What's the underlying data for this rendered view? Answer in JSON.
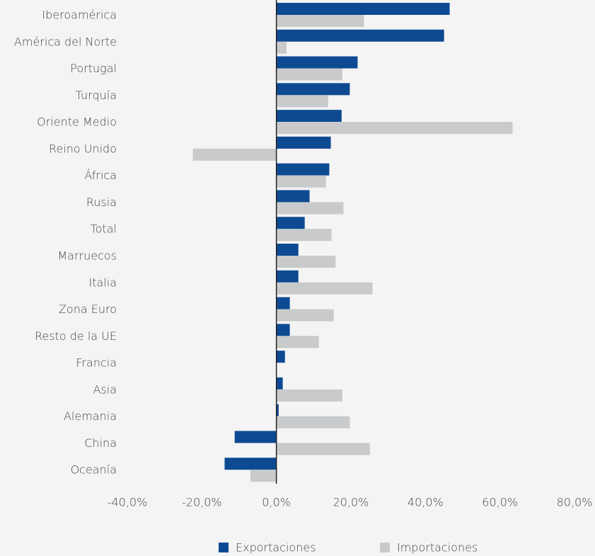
{
  "chart_data": {
    "type": "barh",
    "categories": [
      "Iberoamérica",
      "América del Norte",
      "Portugal",
      "Turquía",
      "Oriente Medio",
      "Reino Unido",
      "África",
      "Rusia",
      "Total",
      "Marruecos",
      "Italia",
      "Zona Euro",
      "Resto de la UE",
      "Francia",
      "Asia",
      "Alemania",
      "China",
      "Oceanía"
    ],
    "series": [
      {
        "name": "Exportaciones",
        "color": "#0d4a92",
        "values": [
          46.5,
          45.0,
          21.8,
          19.7,
          17.5,
          14.6,
          14.2,
          8.9,
          7.6,
          5.9,
          5.9,
          3.6,
          3.6,
          2.3,
          1.7,
          0.6,
          -11.2,
          -13.9
        ]
      },
      {
        "name": "Importaciones",
        "color": "#c8cacc",
        "values": [
          23.5,
          2.7,
          17.7,
          13.9,
          63.4,
          -22.4,
          13.3,
          18.0,
          14.8,
          15.9,
          25.8,
          15.4,
          11.4,
          0,
          17.7,
          19.7,
          25.1,
          -7.0
        ]
      }
    ],
    "xlim": [
      -40,
      80
    ],
    "xticks": [
      {
        "value": -40,
        "label": "-40,0%"
      },
      {
        "value": -20,
        "label": "-20,0%"
      },
      {
        "value": 0,
        "label": "0,0%"
      },
      {
        "value": 20,
        "label": "20,0%"
      },
      {
        "value": 40,
        "label": "40,0%"
      },
      {
        "value": 60,
        "label": "60,0%"
      },
      {
        "value": 80,
        "label": "80,0%"
      }
    ],
    "grid": false,
    "legend": "bottom"
  }
}
